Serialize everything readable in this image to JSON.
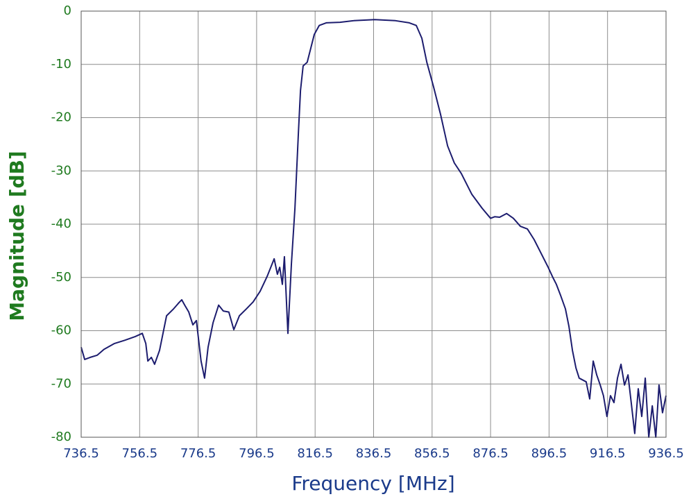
{
  "chart_data": {
    "type": "line",
    "xlabel": "Frequency [MHz]",
    "ylabel": "Magnitude [dB]",
    "xlim": [
      736.5,
      936.5
    ],
    "ylim": [
      -80,
      0
    ],
    "xticks": [
      736.5,
      756.5,
      776.5,
      796.5,
      816.5,
      836.5,
      856.5,
      876.5,
      896.5,
      916.5,
      936.5
    ],
    "yticks": [
      0,
      -10,
      -20,
      -30,
      -40,
      -50,
      -60,
      -70,
      -80
    ],
    "grid": true,
    "series": [
      {
        "color": "#1c1c6e",
        "x": [
          736.5,
          737.7,
          739.6,
          742.0,
          744.3,
          747.9,
          751.4,
          755.0,
          757.4,
          758.6,
          759.3,
          760.5,
          761.6,
          763.3,
          765.7,
          768.1,
          770.0,
          770.9,
          771.9,
          773.3,
          774.7,
          775.9,
          777.5,
          778.7,
          779.9,
          781.6,
          783.5,
          785.1,
          787.0,
          788.7,
          790.6,
          793.0,
          795.3,
          797.7,
          800.1,
          802.5,
          803.6,
          804.4,
          805.3,
          806.0,
          807.2,
          808.4,
          809.6,
          810.8,
          811.5,
          812.4,
          813.8,
          815.0,
          816.2,
          817.9,
          820.3,
          825.0,
          829.7,
          836.9,
          844.0,
          848.7,
          851.1,
          853.0,
          854.7,
          857.0,
          859.4,
          861.8,
          864.1,
          866.5,
          870.1,
          873.6,
          876.5,
          877.9,
          879.6,
          882.0,
          884.3,
          886.7,
          889.1,
          891.4,
          893.8,
          896.2,
          897.8,
          899.0,
          900.4,
          902.1,
          903.3,
          904.5,
          905.7,
          906.8,
          909.2,
          910.4,
          911.6,
          912.8,
          914.0,
          915.1,
          916.3,
          917.5,
          918.7,
          919.9,
          921.1,
          922.3,
          923.5,
          924.6,
          925.8,
          927.0,
          928.2,
          929.4,
          930.6,
          931.8,
          933.0,
          934.1,
          935.3,
          936.5
        ],
        "values": [
          -63.1,
          -65.4,
          -65.0,
          -64.6,
          -63.5,
          -62.4,
          -61.8,
          -61.1,
          -60.5,
          -62.4,
          -65.7,
          -65.0,
          -66.3,
          -63.7,
          -57.2,
          -55.9,
          -54.7,
          -54.2,
          -55.2,
          -56.5,
          -58.9,
          -58.1,
          -65.7,
          -68.9,
          -63.1,
          -58.5,
          -55.2,
          -56.3,
          -56.5,
          -59.8,
          -57.2,
          -55.9,
          -54.6,
          -52.6,
          -49.8,
          -46.5,
          -49.4,
          -48.1,
          -51.3,
          -46.1,
          -60.5,
          -47.4,
          -37.0,
          -22.7,
          -14.9,
          -10.3,
          -9.6,
          -7.0,
          -4.4,
          -2.7,
          -2.2,
          -2.1,
          -1.8,
          -1.6,
          -1.8,
          -2.2,
          -2.7,
          -5.1,
          -9.6,
          -14.2,
          -19.4,
          -25.3,
          -28.5,
          -30.5,
          -34.4,
          -37.0,
          -38.9,
          -38.6,
          -38.7,
          -38.0,
          -38.9,
          -40.4,
          -40.9,
          -42.9,
          -45.5,
          -48.1,
          -50.0,
          -51.3,
          -53.3,
          -55.9,
          -59.2,
          -63.7,
          -67.0,
          -68.9,
          -69.6,
          -72.8,
          -65.7,
          -68.3,
          -70.2,
          -72.2,
          -76.1,
          -72.2,
          -73.5,
          -68.9,
          -66.3,
          -70.2,
          -68.3,
          -73.5,
          -79.3,
          -70.9,
          -76.1,
          -68.9,
          -80.0,
          -74.1,
          -80.0,
          -70.2,
          -75.4,
          -72.2
        ]
      }
    ]
  }
}
